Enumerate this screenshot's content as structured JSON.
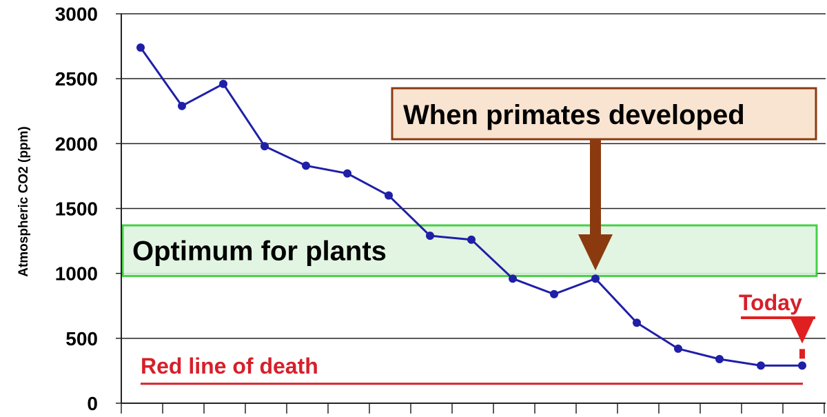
{
  "chart_data": {
    "type": "line",
    "title": "",
    "xlabel": "",
    "ylabel": "Atmospheric CO2 (ppm)",
    "ylim": [
      0,
      3000
    ],
    "yticks": [
      0,
      500,
      1000,
      1500,
      2000,
      2500,
      3000
    ],
    "grid": true,
    "series": [
      {
        "color": "#1f1fa8",
        "values": [
          2740,
          2290,
          2460,
          1980,
          1830,
          1770,
          1600,
          1290,
          1260,
          960,
          840,
          960,
          620,
          420,
          340,
          290,
          290
        ]
      }
    ],
    "annotations": {
      "optimum": {
        "label": "Optimum for plants",
        "range": [
          980,
          1370
        ],
        "fill": "#dff5df",
        "border": "#33cc33"
      },
      "primates": {
        "label": "When primates developed",
        "point_index": 11,
        "box_fill": "#f8e4d0",
        "box_border": "#8b3a10",
        "arrow_color": "#8b3a10"
      },
      "today": {
        "label": "Today",
        "point_index": 16,
        "color": "#e02020"
      },
      "red_line": {
        "label": "Red line of death",
        "value": 150,
        "color": "#d6202a"
      }
    }
  }
}
